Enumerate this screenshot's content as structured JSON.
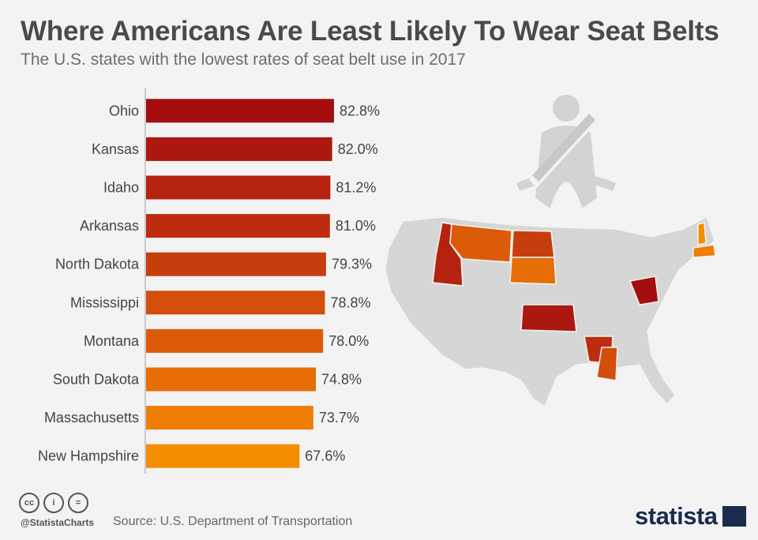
{
  "title": "Where Americans Are Least Likely To Wear Seat Belts",
  "subtitle": "The U.S. states with the lowest rates of seat belt use in 2017",
  "chart_data": {
    "type": "bar",
    "orientation": "horizontal",
    "categories": [
      "Ohio",
      "Kansas",
      "Idaho",
      "Arkansas",
      "North Dakota",
      "Mississippi",
      "Montana",
      "South Dakota",
      "Massachusetts",
      "New Hampshire"
    ],
    "values": [
      82.8,
      82.0,
      81.2,
      81.0,
      79.3,
      78.8,
      78.0,
      74.8,
      73.7,
      67.6
    ],
    "value_labels": [
      "82.8%",
      "82.0%",
      "81.2%",
      "81.0%",
      "79.3%",
      "78.8%",
      "78.0%",
      "74.8%",
      "73.7%",
      "67.6%"
    ],
    "xlim": [
      0,
      100
    ],
    "colors": [
      "#a30d0d",
      "#ab180f",
      "#b52210",
      "#bd2c0f",
      "#c73e0d",
      "#d34d0b",
      "#db5b09",
      "#e76d06",
      "#ef7d04",
      "#f58d00"
    ],
    "grid": false,
    "legend": "none"
  },
  "map": {
    "highlighted_states": [
      "Ohio",
      "Kansas",
      "Idaho",
      "Arkansas",
      "North Dakota",
      "Mississippi",
      "Montana",
      "South Dakota",
      "Massachusetts",
      "New Hampshire"
    ],
    "base_color": "#d6d6d6",
    "icon": "seatbelt-person-icon"
  },
  "footer": {
    "handle": "@StatistaCharts",
    "source": "Source: U.S. Department of Transportation",
    "brand": "statista",
    "license_icons": [
      "cc-icon",
      "by-icon",
      "nd-icon"
    ],
    "license_glyphs": [
      "cc",
      "i",
      "="
    ]
  }
}
